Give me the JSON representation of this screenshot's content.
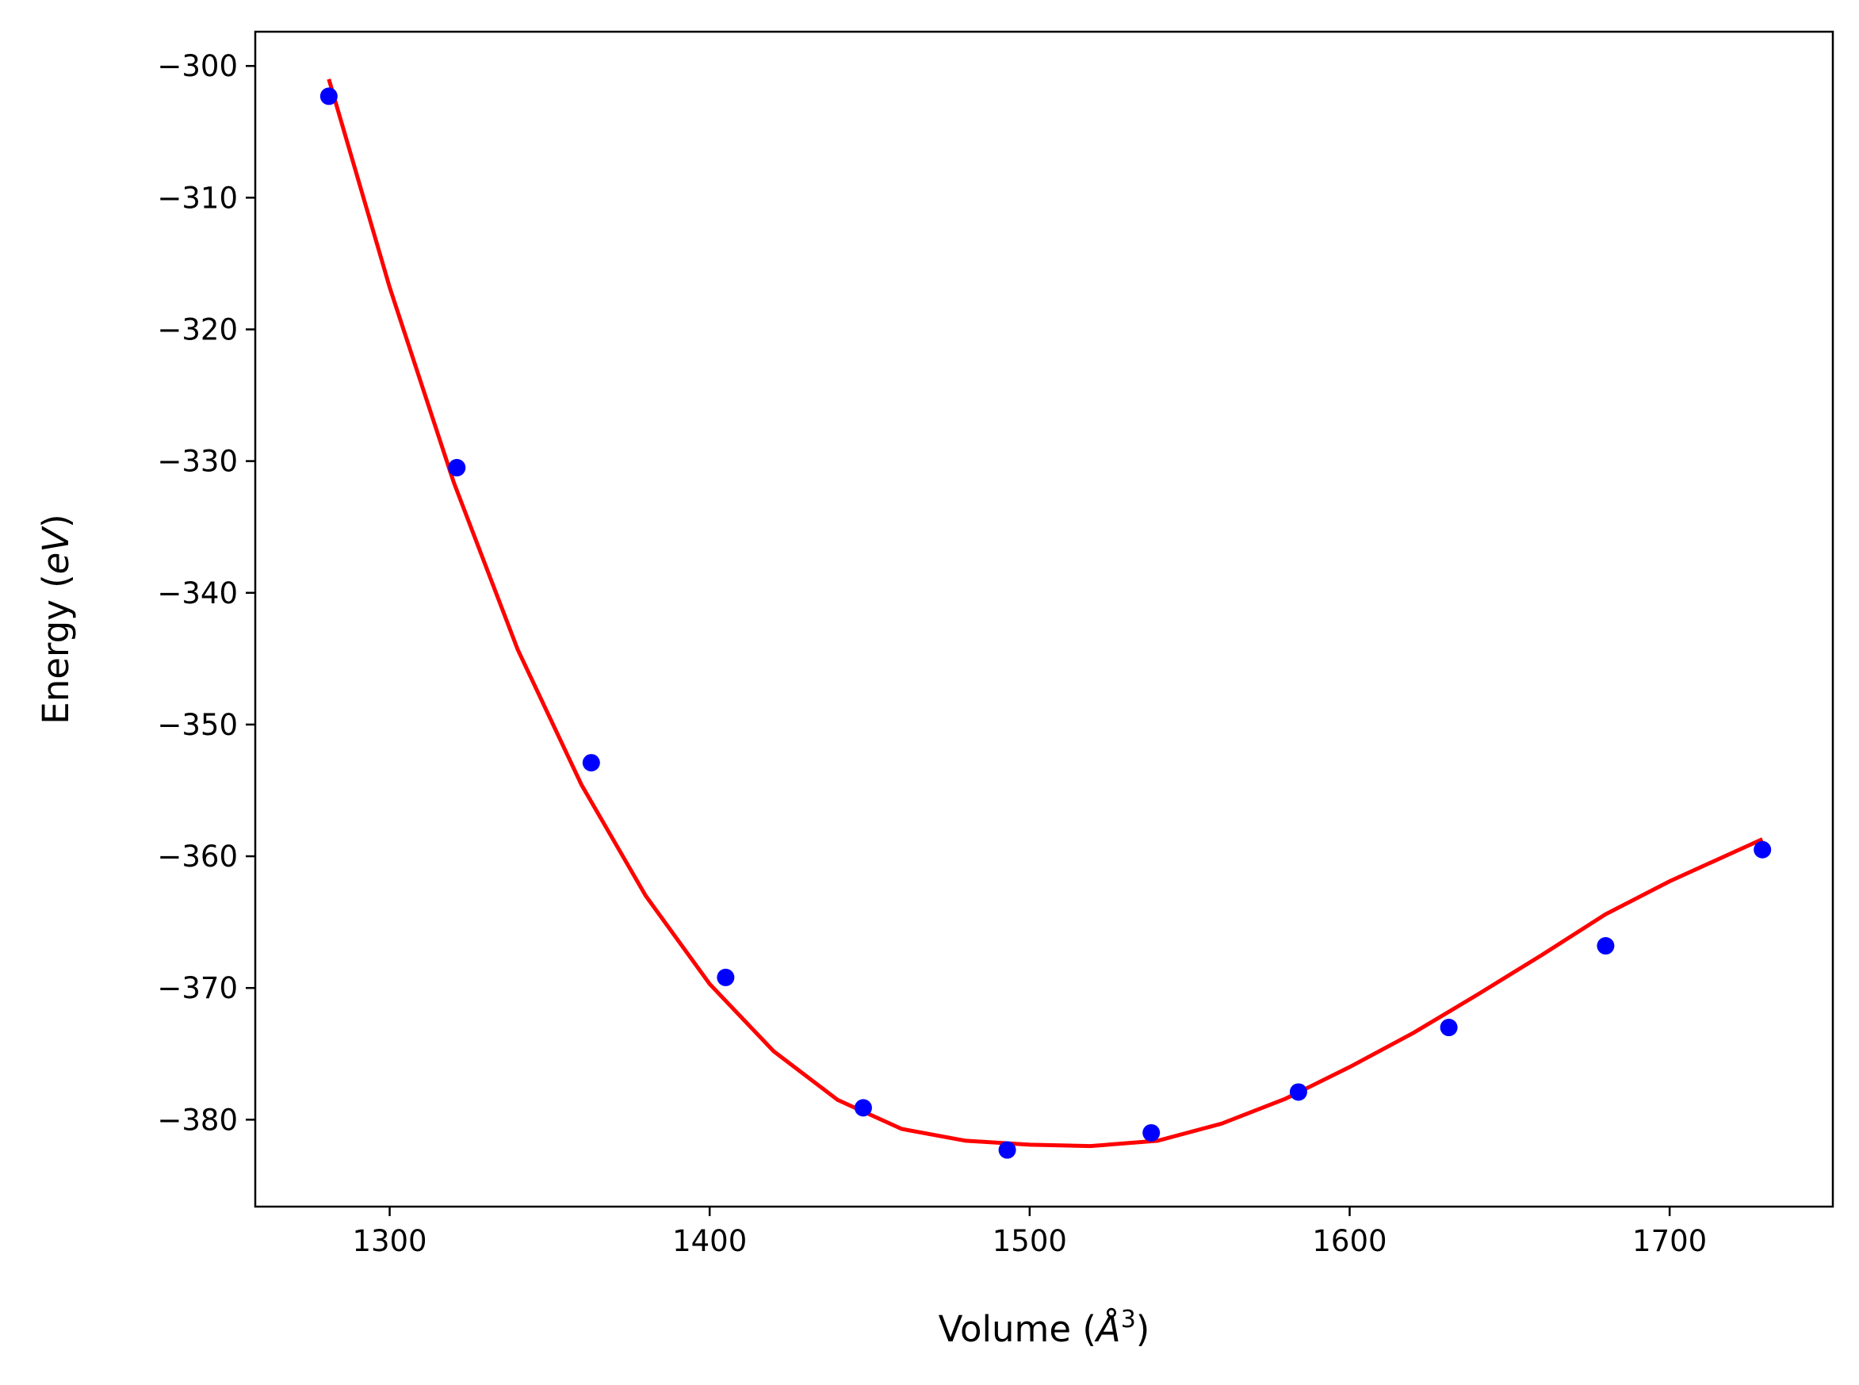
{
  "chart_data": {
    "type": "scatter",
    "title": "",
    "xlabel": "Volume (Å³)",
    "xlabel_parts": {
      "prefix": "Volume (",
      "var": "Å",
      "sup": "3",
      "suffix": ")"
    },
    "ylabel": "Energy (eV)",
    "ylabel_parts": {
      "prefix": "Energy (",
      "var": "eV",
      "suffix": ")"
    },
    "xlim": [
      1258,
      1751
    ],
    "ylim": [
      -386.6,
      -297.4
    ],
    "xticks": [
      1300,
      1400,
      1500,
      1600,
      1700
    ],
    "yticks": [
      -300,
      -310,
      -320,
      -330,
      -340,
      -350,
      -360,
      -370,
      -380
    ],
    "grid": false,
    "legend": "none",
    "series": [
      {
        "kind": "points",
        "color": "#0000ff",
        "x": [
          1281,
          1321,
          1363,
          1405,
          1448,
          1493,
          1538,
          1584,
          1631,
          1680,
          1729
        ],
        "y": [
          -302.3,
          -330.5,
          -352.9,
          -369.2,
          -379.1,
          -382.3,
          -381.0,
          -377.9,
          -373.0,
          -366.8,
          -359.5
        ]
      },
      {
        "kind": "fit_line",
        "color": "#ff0000",
        "x": [
          1281,
          1300,
          1320,
          1340,
          1360,
          1380,
          1400,
          1420,
          1440,
          1460,
          1480,
          1500,
          1519,
          1540,
          1560,
          1580,
          1600,
          1620,
          1640,
          1660,
          1680,
          1700,
          1729
        ],
        "y": [
          -301.0,
          -316.8,
          -331.6,
          -344.3,
          -354.6,
          -363.0,
          -369.7,
          -374.8,
          -378.5,
          -380.7,
          -381.6,
          -381.9,
          -382.0,
          -381.6,
          -380.3,
          -378.4,
          -376.0,
          -373.4,
          -370.5,
          -367.5,
          -364.4,
          -361.9,
          -358.7
        ]
      }
    ]
  }
}
